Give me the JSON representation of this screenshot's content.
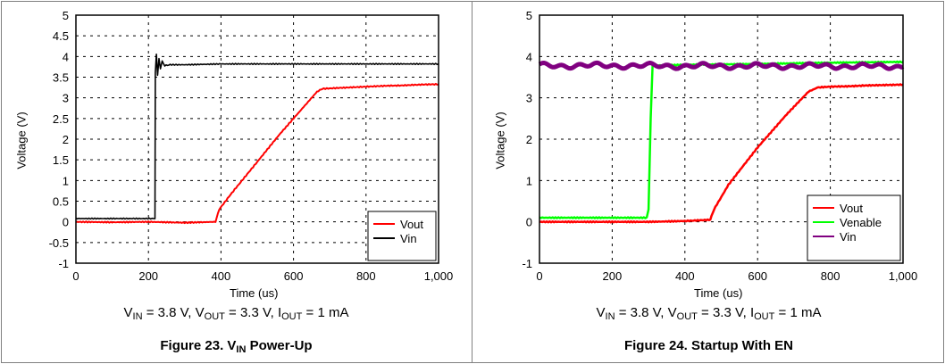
{
  "chart_data": [
    {
      "type": "line",
      "title": "Figure 23. V",
      "title_sub": "IN",
      "title_suffix": " Power-Up",
      "conditions": {
        "vin_prefix": "V",
        "vin_sub": "IN",
        "vin_val": " = 3.8 V, V",
        "vout_sub": "OUT",
        "vout_val": " = 3.3 V, I",
        "iout_sub": "OUT",
        "iout_val": " = 1 mA"
      },
      "xlabel": "Time (us)",
      "ylabel": "Voltage (V)",
      "xlim": [
        0,
        1000
      ],
      "ylim": [
        -1,
        5
      ],
      "xticks": [
        "0",
        "200",
        "400",
        "600",
        "800",
        "1,000"
      ],
      "yticks": [
        "-1",
        "-0.5",
        "0",
        "0.5",
        "1",
        "1.5",
        "2",
        "2.5",
        "3",
        "3.5",
        "4",
        "4.5",
        "5"
      ],
      "ytick_values": [
        -1,
        -0.5,
        0,
        0.5,
        1,
        1.5,
        2,
        2.5,
        3,
        3.5,
        4,
        4.5,
        5
      ],
      "grid": true,
      "legend_position": "bottom-right",
      "series": [
        {
          "name": "Vout",
          "color": "#ff0000",
          "x": [
            0,
            100,
            200,
            300,
            385,
            395,
            430,
            500,
            560,
            620,
            665,
            680,
            750,
            800,
            850,
            900,
            950,
            1000
          ],
          "y": [
            0.0,
            -0.01,
            0.0,
            -0.02,
            0.0,
            0.3,
            0.7,
            1.45,
            2.1,
            2.7,
            3.15,
            3.22,
            3.25,
            3.27,
            3.29,
            3.3,
            3.32,
            3.33
          ]
        },
        {
          "name": "Vin",
          "color": "#000000",
          "x": [
            0,
            100,
            218,
            219,
            222,
            225,
            229,
            233,
            238,
            245,
            260,
            300,
            400,
            600,
            800,
            1000
          ],
          "y": [
            0.08,
            0.08,
            0.08,
            3.6,
            4.05,
            3.55,
            3.95,
            3.7,
            3.88,
            3.78,
            3.8,
            3.8,
            3.82,
            3.82,
            3.82,
            3.82
          ]
        }
      ]
    },
    {
      "type": "line",
      "title": "Figure 24. Startup With EN",
      "conditions": {
        "vin_prefix": "V",
        "vin_sub": "IN",
        "vin_val": " = 3.8 V, V",
        "vout_sub": "OUT",
        "vout_val": " = 3.3 V, I",
        "iout_sub": "OUT",
        "iout_val": " = 1 mA"
      },
      "xlabel": "Time (us)",
      "ylabel": "Voltage (V)",
      "xlim": [
        0,
        1000
      ],
      "ylim": [
        -1,
        5
      ],
      "xticks": [
        "0",
        "200",
        "400",
        "600",
        "800",
        "1,000"
      ],
      "yticks": [
        "-1",
        "0",
        "1",
        "2",
        "3",
        "4",
        "5"
      ],
      "ytick_values": [
        -1,
        0,
        1,
        2,
        3,
        4,
        5
      ],
      "grid": true,
      "legend_position": "bottom-right",
      "series": [
        {
          "name": "Vout",
          "color": "#ff0000",
          "x": [
            0,
            100,
            200,
            300,
            400,
            470,
            480,
            520,
            600,
            680,
            740,
            765,
            800,
            850,
            900,
            950,
            1000
          ],
          "y": [
            0.0,
            0.0,
            0.0,
            0.0,
            0.02,
            0.05,
            0.3,
            0.9,
            1.8,
            2.6,
            3.15,
            3.25,
            3.27,
            3.28,
            3.3,
            3.31,
            3.32
          ]
        },
        {
          "name": "Venable",
          "color": "#00ff00",
          "x": [
            0,
            100,
            200,
            295,
            300,
            306,
            311,
            400,
            600,
            800,
            1000
          ],
          "y": [
            0.1,
            0.1,
            0.1,
            0.1,
            0.3,
            2.5,
            3.78,
            3.8,
            3.82,
            3.85,
            3.87
          ]
        },
        {
          "name": "Vin",
          "color": "#800080",
          "x": [
            0,
            200,
            400,
            600,
            800,
            1000
          ],
          "y": [
            3.78,
            3.78,
            3.77,
            3.77,
            3.77,
            3.76
          ]
        }
      ]
    }
  ]
}
